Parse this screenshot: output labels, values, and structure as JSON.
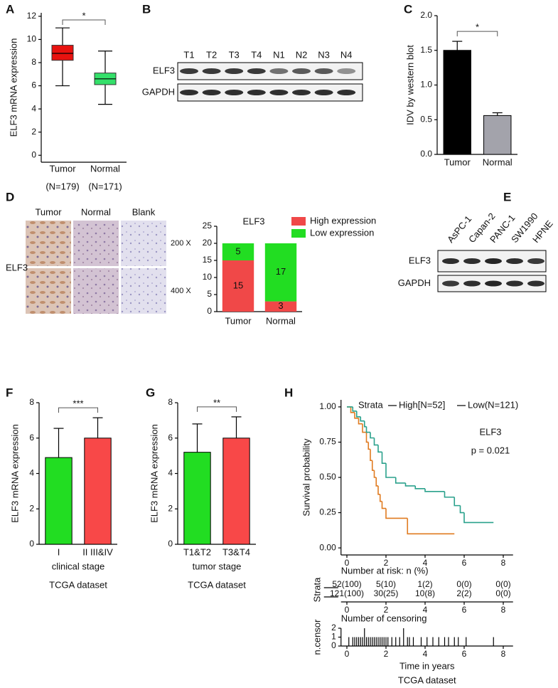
{
  "panel_labels": [
    "A",
    "B",
    "C",
    "D",
    "E",
    "F",
    "G",
    "H"
  ],
  "blots": [
    {
      "lanes": [
        "T1",
        "T2",
        "T3",
        "T4",
        "N1",
        "N2",
        "N3",
        "N4"
      ],
      "rows": [
        "ELF3",
        "GAPDH"
      ]
    },
    {
      "lanes": [
        "AsPC-1",
        "Capan-2",
        "PANC-1",
        "SW1990",
        "HPNE"
      ],
      "rows": [
        "ELF3",
        "GAPDH"
      ]
    }
  ],
  "histology": {
    "columns": [
      "Tumor",
      "Normal",
      "Blank"
    ],
    "row_label": "ELF3",
    "magnifications": [
      "200 X",
      "400 X"
    ]
  },
  "chart_data": [
    {
      "type": "box",
      "ylabel": "ELF3 mRNA expression",
      "categories": [
        "Tumor",
        "Normal"
      ],
      "sublabels": [
        "(N=179)",
        "(N=171)"
      ],
      "boxes": [
        {
          "whislo": 6.0,
          "q1": 8.2,
          "med": 8.8,
          "q3": 9.5,
          "whishi": 11.0,
          "color": "#e8120f"
        },
        {
          "whislo": 4.4,
          "q1": 6.1,
          "med": 6.6,
          "q3": 7.1,
          "whishi": 9.0,
          "color": "#34e06a"
        }
      ],
      "ylim": [
        -0.6,
        12.3
      ],
      "yticks": [
        0,
        2,
        4,
        6,
        8,
        10,
        12
      ],
      "annotation": "*",
      "annotation_color": "#ff3030"
    },
    {
      "type": "bar",
      "ylabel": "IDV by western blot",
      "categories": [
        "Tumor",
        "Normal"
      ],
      "values": [
        1.5,
        0.56
      ],
      "errors": [
        0.13,
        0.04
      ],
      "colors": [
        "#000000",
        "#a3a3ab"
      ],
      "ylim": [
        0,
        2
      ],
      "yticks": [
        {
          "value": 0,
          "label": "0.0"
        },
        {
          "value": 0.5,
          "label": "0.5"
        },
        {
          "value": 1,
          "label": "1.0"
        },
        {
          "value": 1.5,
          "label": "1.5"
        },
        {
          "value": 2,
          "label": "2.0"
        }
      ],
      "annotation": "*",
      "annotation_color": "#000000"
    },
    {
      "type": "stacked_bar",
      "title": "ELF3",
      "categories": [
        "Tumor",
        "Normal"
      ],
      "series": [
        {
          "name": "High expression",
          "color": "#f04848",
          "values": [
            15,
            3
          ]
        },
        {
          "name": "Low expression",
          "color": "#22dd22",
          "values": [
            5,
            17
          ]
        }
      ],
      "ylim": [
        0,
        25
      ],
      "yticks": [
        0,
        5,
        10,
        15,
        20,
        25
      ]
    },
    {
      "type": "bar",
      "ylabel": "ELF3 mRNA expression",
      "xlabel": "clinical stage",
      "caption": "TCGA dataset",
      "categories": [
        "I",
        "II III&IV"
      ],
      "values": [
        4.9,
        6.0
      ],
      "errors": [
        1.65,
        1.15
      ],
      "colors": [
        "#22dd22",
        "#f84848"
      ],
      "ylim": [
        0,
        8
      ],
      "yticks": [
        0,
        2,
        4,
        6,
        8
      ],
      "annotation": "***",
      "annotation_color": "#000000"
    },
    {
      "type": "bar",
      "ylabel": "ELF3 mRNA expression",
      "xlabel": "tumor stage",
      "caption": "TCGA dataset",
      "categories": [
        "T1&T2",
        "T3&T4"
      ],
      "values": [
        5.2,
        6.0
      ],
      "errors": [
        1.6,
        1.2
      ],
      "colors": [
        "#22dd22",
        "#f84848"
      ],
      "ylim": [
        0,
        8
      ],
      "yticks": [
        0,
        2,
        4,
        6,
        8
      ],
      "annotation": "**",
      "annotation_color": "#000000"
    },
    {
      "type": "survival",
      "ylabel": "Survival probability",
      "legend_title": "Strata",
      "annotations": [
        "ELF3",
        "p = 0.021"
      ],
      "series": [
        {
          "name": "High[N=52]",
          "color": "#e07b20",
          "x": [
            0,
            0.2,
            0.4,
            0.6,
            0.8,
            1.0,
            1.1,
            1.2,
            1.3,
            1.4,
            1.5,
            1.6,
            1.7,
            1.8,
            2.0,
            3.1,
            5.5
          ],
          "values": [
            1,
            0.96,
            0.92,
            0.88,
            0.82,
            0.75,
            0.7,
            0.62,
            0.55,
            0.5,
            0.44,
            0.38,
            0.33,
            0.28,
            0.21,
            0.1,
            0.1
          ]
        },
        {
          "name": "Low(N=121)",
          "color": "#2aa18c",
          "x": [
            0,
            0.3,
            0.5,
            0.7,
            0.9,
            1.0,
            1.2,
            1.4,
            1.6,
            1.8,
            2.0,
            2.5,
            3.0,
            3.5,
            4.0,
            5.0,
            5.5,
            5.8,
            6.0,
            7.5
          ],
          "values": [
            1,
            0.97,
            0.93,
            0.9,
            0.86,
            0.82,
            0.78,
            0.73,
            0.68,
            0.6,
            0.5,
            0.46,
            0.44,
            0.42,
            0.4,
            0.36,
            0.3,
            0.25,
            0.18,
            0.18
          ]
        }
      ],
      "xlim": [
        -0.3,
        8.5
      ],
      "xticks": [
        0,
        2,
        4,
        6,
        8
      ],
      "ylim": [
        -0.05,
        1.05
      ],
      "yticks": [
        {
          "value": 0,
          "label": "0.00"
        },
        {
          "value": 0.25,
          "label": "0.25"
        },
        {
          "value": 0.5,
          "label": "0.50"
        },
        {
          "value": 0.75,
          "label": "0.75"
        },
        {
          "value": 1,
          "label": "1.00"
        }
      ]
    },
    {
      "type": "risk_table",
      "title": "Number at risk: n (%)",
      "ylabel": "Strata",
      "rows": [
        {
          "color": "#e07b20",
          "values": [
            "52(100)",
            "5(10)",
            "1(2)",
            "0(0)",
            "0(0)"
          ]
        },
        {
          "color": "#2aa18c",
          "values": [
            "121(100)",
            "30(25)",
            "10(8)",
            "2(2)",
            "0(0)"
          ]
        }
      ],
      "xlim": [
        -0.3,
        8.5
      ],
      "xticks": [
        0,
        2,
        4,
        6,
        8
      ]
    },
    {
      "type": "censor",
      "title": "Number of censoring",
      "ylabel": "n.censor",
      "xlabel": "Time in years",
      "caption": "TCGA dataset",
      "series": [
        {
          "color": "#e07b20",
          "x": [
            0.3,
            0.5,
            0.6,
            0.8,
            1.0,
            1.1,
            1.3,
            1.5,
            1.6,
            1.8,
            1.9,
            2.0,
            3.1,
            5.5
          ],
          "values": [
            1,
            1,
            1,
            1,
            1,
            1,
            1,
            1,
            1,
            1,
            1,
            1,
            1,
            1
          ]
        },
        {
          "color": "#2aa18c",
          "x": [
            0.1,
            0.4,
            0.7,
            0.9,
            1.2,
            1.4,
            1.7,
            2.1,
            2.3,
            2.5,
            2.7,
            2.9,
            3.2,
            3.4,
            3.8,
            4.1,
            4.4,
            4.7,
            5.0,
            5.2,
            5.7,
            6.1,
            7.5
          ],
          "values": [
            1,
            1,
            1,
            2,
            1,
            1,
            1,
            1,
            1,
            1,
            1,
            2,
            1,
            1,
            1,
            1,
            1,
            1,
            1,
            1,
            1,
            1,
            1
          ]
        }
      ],
      "xlim": [
        -0.3,
        8.5
      ],
      "xticks": [
        0,
        2,
        4,
        6,
        8
      ],
      "ylim": [
        0,
        2
      ],
      "yticks": [
        0,
        1,
        2
      ]
    }
  ]
}
